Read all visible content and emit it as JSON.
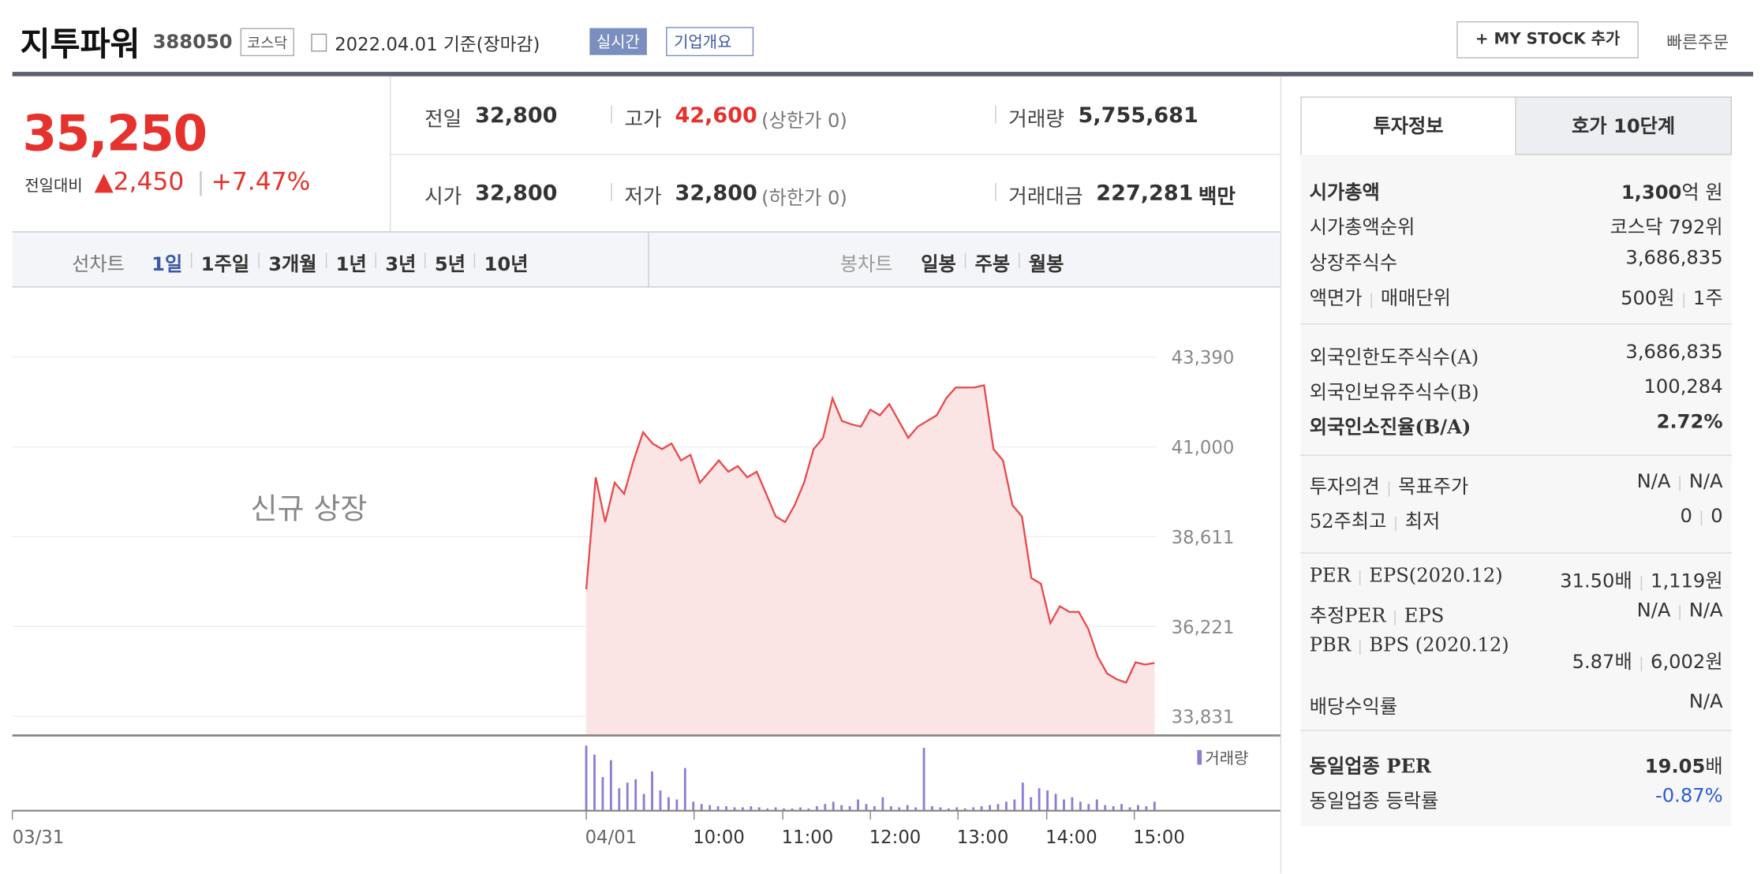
{
  "header": {
    "title": "지투파워",
    "code": "388050",
    "market": "코스닥",
    "date": "2022.04.01 기준(장마감)",
    "realtime": "실시간",
    "overview": "기업개요",
    "mystock": "+ MY STOCK 추가",
    "quick_order": "빠른주문"
  },
  "quote": {
    "price": "35,250",
    "change_label": "전일대비",
    "change": "▲2,450",
    "change_pct": "+7.47%",
    "items": [
      {
        "label": "전일",
        "value": "32,800"
      },
      {
        "label": "고가",
        "value": "42,600",
        "note": "(상한가 0)"
      },
      {
        "label": "거래량",
        "value": "5,755,681"
      },
      {
        "label": "시가",
        "value": "32,800"
      },
      {
        "label": "저가",
        "value": "32,800",
        "note": "(하한가 0)"
      },
      {
        "label": "거래대금",
        "value": "227,281",
        "unit": "백만"
      }
    ]
  },
  "chart_tabs": {
    "line_label": "선차트",
    "periods": [
      "1일",
      "1주일",
      "3개월",
      "1년",
      "3년",
      "5년",
      "10년"
    ],
    "candle_label": "봉차트",
    "candles": [
      "일봉",
      "주봉",
      "월봉"
    ]
  },
  "chart_data": {
    "type": "line",
    "annotation": "신규 상장",
    "color": "#e8484b",
    "fill": "#fbe4e4",
    "values": [
      37210,
      40190,
      39000,
      40050,
      39750,
      40640,
      41390,
      41090,
      40940,
      41090,
      40640,
      40790,
      40050,
      40340,
      40640,
      40340,
      40490,
      40190,
      40340,
      39750,
      39150,
      39000,
      39450,
      40050,
      40940,
      41240,
      42290,
      41690,
      41600,
      41540,
      41990,
      41840,
      42140,
      41690,
      41240,
      41540,
      41690,
      41840,
      42290,
      42580,
      42580,
      42580,
      42640,
      40940,
      40640,
      39450,
      39150,
      37510,
      37360,
      36310,
      36760,
      36610,
      36610,
      36160,
      35420,
      34970,
      34820,
      34730,
      35270,
      35210,
      35250
    ],
    "ylim": [
      33831,
      43390
    ],
    "yticks": [
      {
        "value": 33831,
        "label": "33,831"
      },
      {
        "value": 36221,
        "label": "36,221"
      },
      {
        "value": 38611,
        "label": "38,611"
      },
      {
        "value": 41000,
        "label": "41,000"
      },
      {
        "value": 43390,
        "label": "43,390"
      }
    ],
    "x_labels": [
      "03/31",
      "04/01",
      "10:00",
      "11:00",
      "12:00",
      "13:00",
      "14:00",
      "15:00"
    ],
    "volume": {
      "name": "거래량",
      "color": "#8b7fd0",
      "values": [
        58,
        50,
        30,
        45,
        20,
        25,
        28,
        15,
        35,
        18,
        12,
        10,
        38,
        8,
        6,
        5,
        4,
        4,
        3,
        3,
        4,
        3,
        2,
        3,
        2,
        2,
        3,
        2,
        4,
        6,
        8,
        5,
        4,
        10,
        6,
        4,
        12,
        4,
        3,
        5,
        3,
        56,
        4,
        3,
        2,
        3,
        2,
        3,
        4,
        5,
        6,
        8,
        10,
        25,
        12,
        20,
        18,
        15,
        10,
        12,
        8,
        6,
        10,
        5,
        4,
        6,
        3,
        5,
        4,
        8
      ]
    }
  },
  "invest": {
    "tabs": [
      "투자정보",
      "호가 10단계"
    ],
    "sections": [
      [
        {
          "label": [
            "시가총액"
          ],
          "value": [
            "1,300",
            "억 원"
          ],
          "emphasis": true
        },
        {
          "label": [
            "시가총액순위"
          ],
          "value": [
            "코스닥 792위"
          ]
        },
        {
          "label": [
            "상장주식수"
          ],
          "value": [
            "3,686,835"
          ]
        },
        {
          "label": [
            "액면가",
            "매매단위"
          ],
          "value": [
            "500원",
            "1주"
          ]
        }
      ],
      [
        {
          "label": [
            "외국인한도주식수(A)"
          ],
          "value": [
            "3,686,835"
          ]
        },
        {
          "label": [
            "외국인보유주식수(B)"
          ],
          "value": [
            "100,284"
          ]
        },
        {
          "label": [
            "외국인소진율(B/A)"
          ],
          "value": [
            "2.72%"
          ],
          "emphasis": true
        }
      ],
      [
        {
          "label": [
            "투자의견",
            "목표주가"
          ],
          "value": [
            "N/A",
            "N/A"
          ]
        },
        {
          "label": [
            "52주최고",
            "최저"
          ],
          "value": [
            "0",
            "0"
          ]
        }
      ],
      [
        {
          "label": [
            "PER",
            "EPS(2020.12)"
          ],
          "value": [
            "31.50배",
            "1,119원"
          ]
        },
        {
          "label": [
            "추정PER",
            "EPS"
          ],
          "value": [
            "N/A",
            "N/A"
          ]
        },
        {
          "label": [
            "PBR",
            "BPS (2020.12)"
          ],
          "value": [
            "5.87배",
            "6,002원"
          ]
        },
        {
          "label": [
            "배당수익률"
          ],
          "value": [
            "N/A"
          ]
        }
      ],
      [
        {
          "label": [
            "동일업종 PER"
          ],
          "value": [
            "19.05",
            "배"
          ],
          "emphasis": true
        },
        {
          "label": [
            "동일업종 등락률"
          ],
          "value": [
            "-0.87%"
          ],
          "color": "#2c5bd6"
        }
      ]
    ]
  }
}
